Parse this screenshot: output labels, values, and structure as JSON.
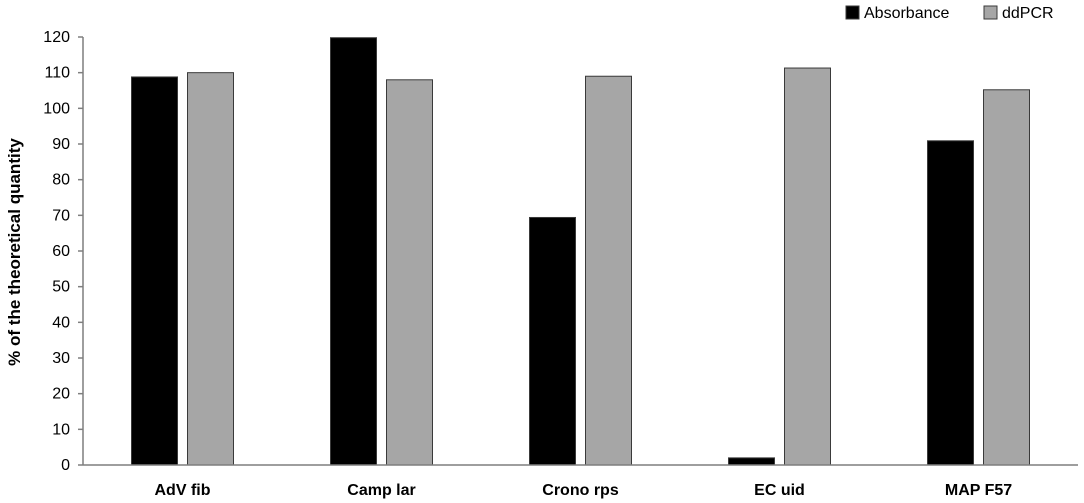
{
  "chart_data": {
    "type": "bar",
    "title": "",
    "xlabel": "",
    "ylabel": "% of the theoretical quantity",
    "ylim": [
      0,
      120
    ],
    "yticks": [
      0,
      10,
      20,
      30,
      40,
      50,
      60,
      70,
      80,
      90,
      100,
      110,
      120
    ],
    "grid": false,
    "legend_position": "top-right",
    "categories": [
      "AdV fib",
      "Camp lar",
      "Crono rps",
      "EC uid",
      "MAP F57"
    ],
    "series": [
      {
        "name": "Absorbance",
        "color": "#000000",
        "values": [
          108.8,
          119.8,
          69.4,
          2.0,
          90.9
        ]
      },
      {
        "name": "ddPCR",
        "color": "#a6a6a6",
        "values": [
          110.0,
          108.0,
          109.0,
          111.3,
          105.2
        ]
      }
    ]
  }
}
